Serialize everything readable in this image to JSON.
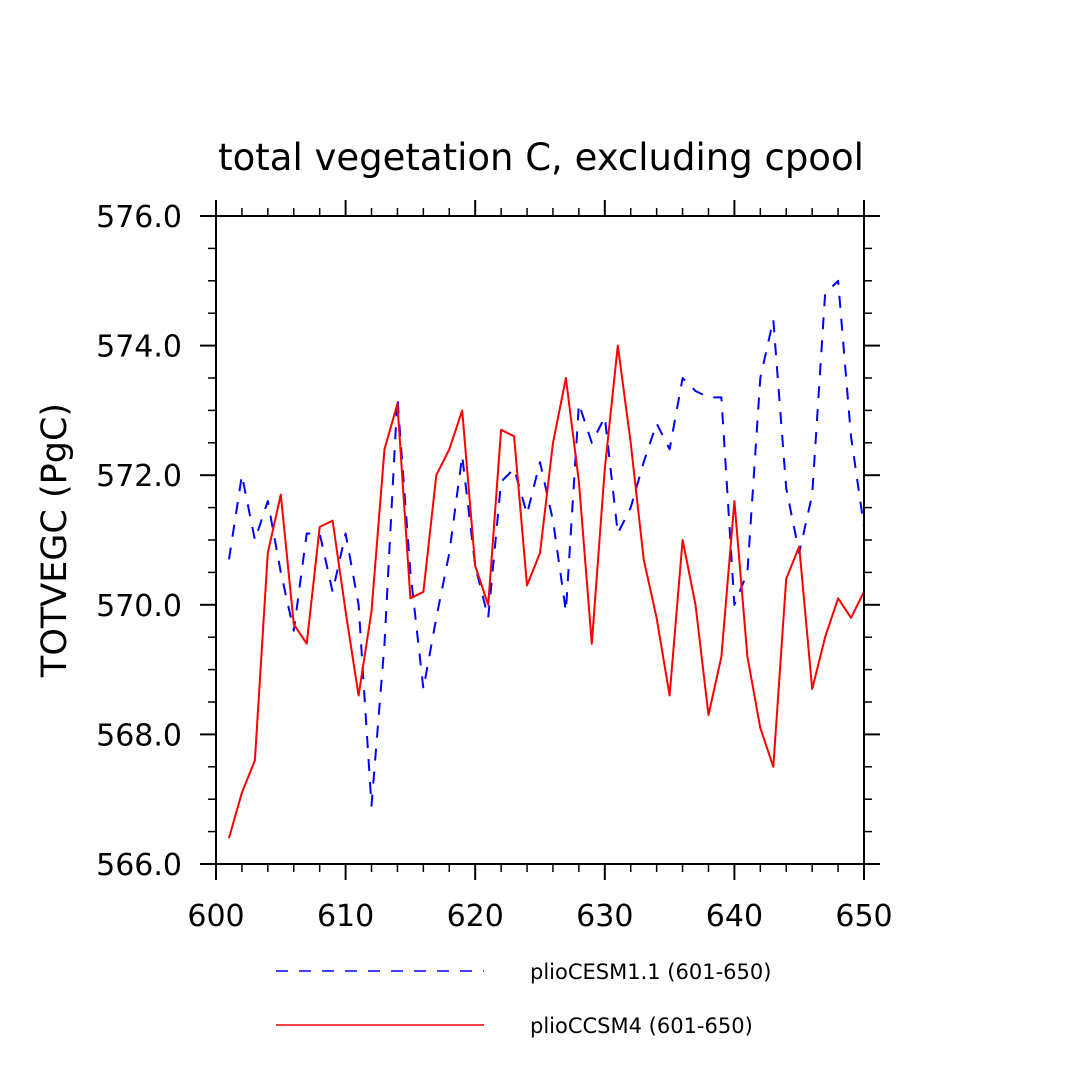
{
  "chart_data": {
    "type": "line",
    "title": "total vegetation C, excluding cpool",
    "ylabel": "TOTVEGC  (PgC)",
    "xlabel": "",
    "xlim": [
      600,
      650
    ],
    "ylim": [
      566.0,
      576.0
    ],
    "xticks": [
      600,
      610,
      620,
      630,
      640,
      650
    ],
    "xtick_labels": [
      "600",
      "610",
      "620",
      "630",
      "640",
      "650"
    ],
    "yticks": [
      566.0,
      568.0,
      570.0,
      572.0,
      574.0,
      576.0
    ],
    "ytick_labels": [
      "566.0",
      "568.0",
      "570.0",
      "572.0",
      "574.0",
      "576.0"
    ],
    "grid": false,
    "legend_position": "bottom",
    "x": [
      601,
      602,
      603,
      604,
      605,
      606,
      607,
      608,
      609,
      610,
      611,
      612,
      613,
      614,
      615,
      616,
      617,
      618,
      619,
      620,
      621,
      622,
      623,
      624,
      625,
      626,
      627,
      628,
      629,
      630,
      631,
      632,
      633,
      634,
      635,
      636,
      637,
      638,
      639,
      640,
      641,
      642,
      643,
      644,
      645,
      646,
      647,
      648,
      649,
      650
    ],
    "series": [
      {
        "name": "plioCESM1.1 (601-650)",
        "color": "#0000ff",
        "dash": "dashed",
        "values": [
          570.7,
          572.0,
          571.0,
          571.6,
          570.5,
          569.6,
          571.1,
          571.1,
          570.2,
          571.1,
          570.0,
          566.9,
          569.4,
          573.2,
          570.5,
          568.7,
          569.8,
          570.8,
          572.3,
          570.6,
          569.8,
          571.9,
          572.1,
          571.4,
          572.2,
          571.3,
          569.9,
          573.1,
          572.5,
          572.9,
          571.1,
          571.5,
          572.2,
          572.8,
          572.4,
          573.5,
          573.3,
          573.2,
          573.2,
          570.0,
          570.5,
          573.5,
          574.4,
          571.8,
          570.8,
          571.7,
          574.8,
          575.0,
          572.6,
          571.2
        ]
      },
      {
        "name": "plioCCSM4 (601-650)",
        "color": "#ff0000",
        "dash": "solid",
        "values": [
          566.4,
          567.1,
          567.6,
          570.8,
          571.7,
          569.7,
          569.4,
          571.2,
          571.3,
          569.9,
          568.6,
          569.9,
          572.4,
          573.1,
          570.1,
          570.2,
          572.0,
          572.4,
          573.0,
          570.6,
          570.0,
          572.7,
          572.6,
          570.3,
          570.8,
          572.5,
          573.5,
          571.9,
          569.4,
          572.1,
          574.0,
          572.5,
          570.7,
          569.8,
          568.6,
          571.0,
          570.0,
          568.3,
          569.2,
          571.6,
          569.2,
          568.1,
          567.5,
          570.4,
          570.9,
          568.7,
          569.5,
          570.1,
          569.8,
          570.2
        ]
      }
    ]
  }
}
